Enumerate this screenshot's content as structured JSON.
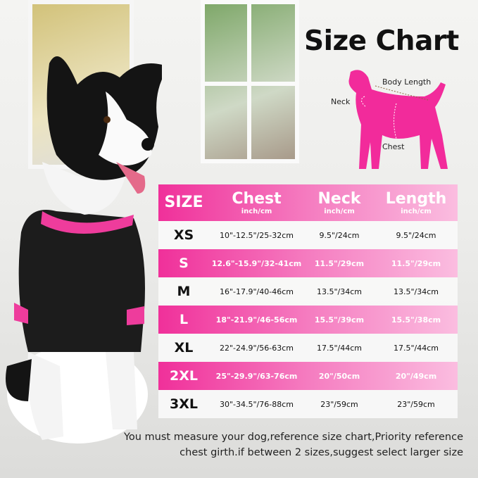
{
  "title": "Size Chart",
  "diagram_labels": {
    "body_length": "Body Length",
    "neck": "Neck",
    "chest": "Chest"
  },
  "table": {
    "headers": [
      {
        "label": "SIZE",
        "unit": ""
      },
      {
        "label": "Chest",
        "unit": "inch/cm"
      },
      {
        "label": "Neck",
        "unit": "inch/cm"
      },
      {
        "label": "Length",
        "unit": "inch/cm"
      }
    ],
    "rows": [
      [
        "XS",
        "10\"-12.5\"/25-32cm",
        "9.5\"/24cm",
        "9.5\"/24cm"
      ],
      [
        "S",
        "12.6\"-15.9\"/32-41cm",
        "11.5\"/29cm",
        "11.5\"/29cm"
      ],
      [
        "M",
        "16\"-17.9\"/40-46cm",
        "13.5\"/34cm",
        "13.5\"/34cm"
      ],
      [
        "L",
        "18\"-21.9\"/46-56cm",
        "15.5\"/39cm",
        "15.5\"/38cm"
      ],
      [
        "XL",
        "22\"-24.9\"/56-63cm",
        "17.5\"/44cm",
        "17.5\"/44cm"
      ],
      [
        "2XL",
        "25\"-29.9\"/63-76cm",
        "20\"/50cm",
        "20\"/49cm"
      ],
      [
        "3XL",
        "30\"-34.5\"/76-88cm",
        "23\"/59cm",
        "23\"/59cm"
      ]
    ]
  },
  "note": [
    "You must measure your dog,reference size chart,Priority reference",
    "chest girth.if between 2 sizes,suggest select larger size"
  ],
  "colors": {
    "accent": "#f0309a",
    "accent_light": "#fbbde0"
  }
}
